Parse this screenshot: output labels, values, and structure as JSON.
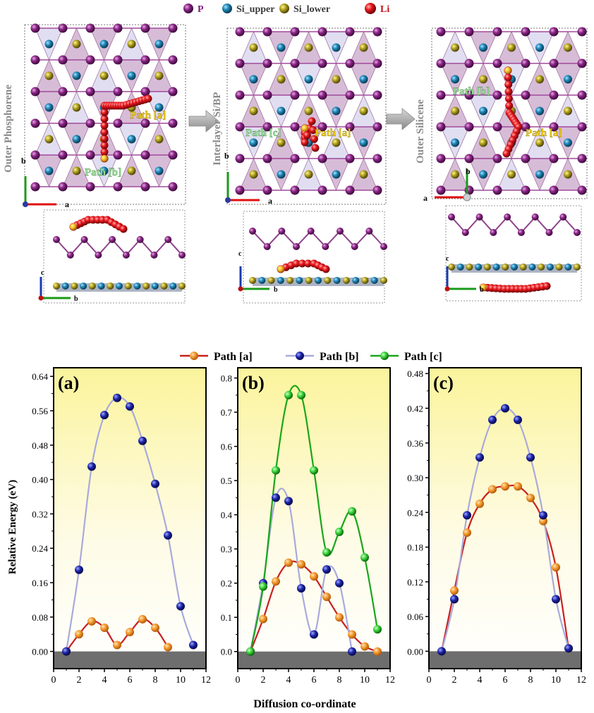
{
  "structures": {
    "atom_legend": [
      {
        "label": "P",
        "color": "#7b1f78"
      },
      {
        "label": "Si_upper",
        "color": "#1f88b8"
      },
      {
        "label": "Si_lower",
        "color": "#a89a1c"
      },
      {
        "label": "Li",
        "color": "#e8161b"
      }
    ],
    "panels": [
      {
        "title": "Outer Phosphorene",
        "path_a_label": "Path [a]",
        "path_b_label": "Path [b]",
        "path_c_label": ""
      },
      {
        "title": "Interlayer Si/BP",
        "path_a_label": "Path [a]",
        "path_b_label": "Path [c]",
        "path_c_label": ""
      },
      {
        "title": "Outer Silicene",
        "path_a_label": "Path [a]",
        "path_b_label": "Path [b]",
        "path_c_label": ""
      }
    ],
    "axis_labels": {
      "a": "a",
      "b": "b",
      "c": "c"
    }
  },
  "legend": [
    {
      "label": "Path [a]",
      "line": "#c8201e",
      "marker": "#f3992e"
    },
    {
      "label": "Path [b]",
      "line": "#a9a9dc",
      "marker": "#1c24a8"
    },
    {
      "label": "Path [c]",
      "line": "#1aa51a",
      "marker": "#38d038"
    }
  ],
  "chart_data": [
    {
      "type": "line",
      "panel_label": "(a)",
      "ylabel": "Relative Energy (eV)",
      "xlabel": "Diffusion co-ordinate",
      "xlim": [
        0,
        12
      ],
      "ylim": [
        -0.04,
        0.66
      ],
      "xticks": [
        0,
        2,
        4,
        6,
        8,
        10,
        12
      ],
      "yticks": [
        0.0,
        0.08,
        0.16,
        0.24,
        0.32,
        0.4,
        0.48,
        0.56,
        0.64
      ],
      "ytick_labels": [
        "0.00",
        "0.08",
        "0.16",
        "0.24",
        "0.32",
        "0.40",
        "0.48",
        "0.56",
        "0.64"
      ],
      "series": [
        {
          "name": "Path [a]",
          "x": [
            1,
            2,
            3,
            4,
            5,
            6,
            7,
            8,
            9
          ],
          "y": [
            0.0,
            0.04,
            0.07,
            0.055,
            0.015,
            0.045,
            0.075,
            0.055,
            0.01
          ]
        },
        {
          "name": "Path [b]",
          "x": [
            1,
            2,
            3,
            4,
            5,
            6,
            7,
            8,
            9,
            10,
            11
          ],
          "y": [
            0.0,
            0.19,
            0.43,
            0.55,
            0.59,
            0.57,
            0.49,
            0.39,
            0.27,
            0.105,
            0.015
          ]
        }
      ]
    },
    {
      "type": "line",
      "panel_label": "(b)",
      "ylabel": "",
      "xlabel": "Diffusion co-ordinate",
      "xlim": [
        0,
        12
      ],
      "ylim": [
        -0.05,
        0.83
      ],
      "xticks": [
        0,
        2,
        4,
        6,
        8,
        10,
        12
      ],
      "yticks": [
        0.0,
        0.1,
        0.2,
        0.3,
        0.4,
        0.5,
        0.6,
        0.7,
        0.8
      ],
      "ytick_labels": [
        "0.0",
        "0.1",
        "0.2",
        "0.3",
        "0.4",
        "0.5",
        "0.6",
        "0.7",
        "0.8"
      ],
      "series": [
        {
          "name": "Path [a]",
          "x": [
            1,
            2,
            3,
            4,
            5,
            6,
            7,
            8,
            9,
            10,
            11
          ],
          "y": [
            0.0,
            0.095,
            0.205,
            0.26,
            0.255,
            0.22,
            0.16,
            0.1,
            0.05,
            0.015,
            0.0
          ]
        },
        {
          "name": "Path [b]",
          "x": [
            1,
            2,
            3,
            4,
            5,
            6,
            7,
            8,
            9
          ],
          "y": [
            0.0,
            0.2,
            0.45,
            0.44,
            0.185,
            0.05,
            0.24,
            0.2,
            0.0
          ]
        },
        {
          "name": "Path [c]",
          "x": [
            1,
            2,
            3,
            4,
            5,
            6,
            7,
            8,
            9,
            10,
            11
          ],
          "y": [
            0.0,
            0.19,
            0.53,
            0.75,
            0.75,
            0.53,
            0.29,
            0.35,
            0.41,
            0.275,
            0.065
          ]
        }
      ]
    },
    {
      "type": "line",
      "panel_label": "(c)",
      "ylabel": "",
      "xlabel": "Diffusion co-ordinate",
      "xlim": [
        0,
        12
      ],
      "ylim": [
        -0.03,
        0.49
      ],
      "xticks": [
        0,
        2,
        4,
        6,
        8,
        10,
        12
      ],
      "yticks": [
        0.0,
        0.06,
        0.12,
        0.18,
        0.24,
        0.3,
        0.36,
        0.42,
        0.48
      ],
      "ytick_labels": [
        "0.00",
        "0.06",
        "0.12",
        "0.18",
        "0.24",
        "0.30",
        "0.36",
        "0.42",
        "0.48"
      ],
      "series": [
        {
          "name": "Path [a]",
          "x": [
            1,
            2,
            3,
            4,
            5,
            6,
            7,
            8,
            9,
            10,
            11
          ],
          "y": [
            0.0,
            0.105,
            0.205,
            0.255,
            0.28,
            0.285,
            0.285,
            0.265,
            0.225,
            0.145,
            0.005
          ]
        },
        {
          "name": "Path [b]",
          "x": [
            1,
            2,
            3,
            4,
            5,
            6,
            7,
            8,
            9,
            10,
            11
          ],
          "y": [
            0.0,
            0.09,
            0.235,
            0.335,
            0.4,
            0.42,
            0.4,
            0.335,
            0.235,
            0.09,
            0.005
          ]
        }
      ]
    }
  ]
}
